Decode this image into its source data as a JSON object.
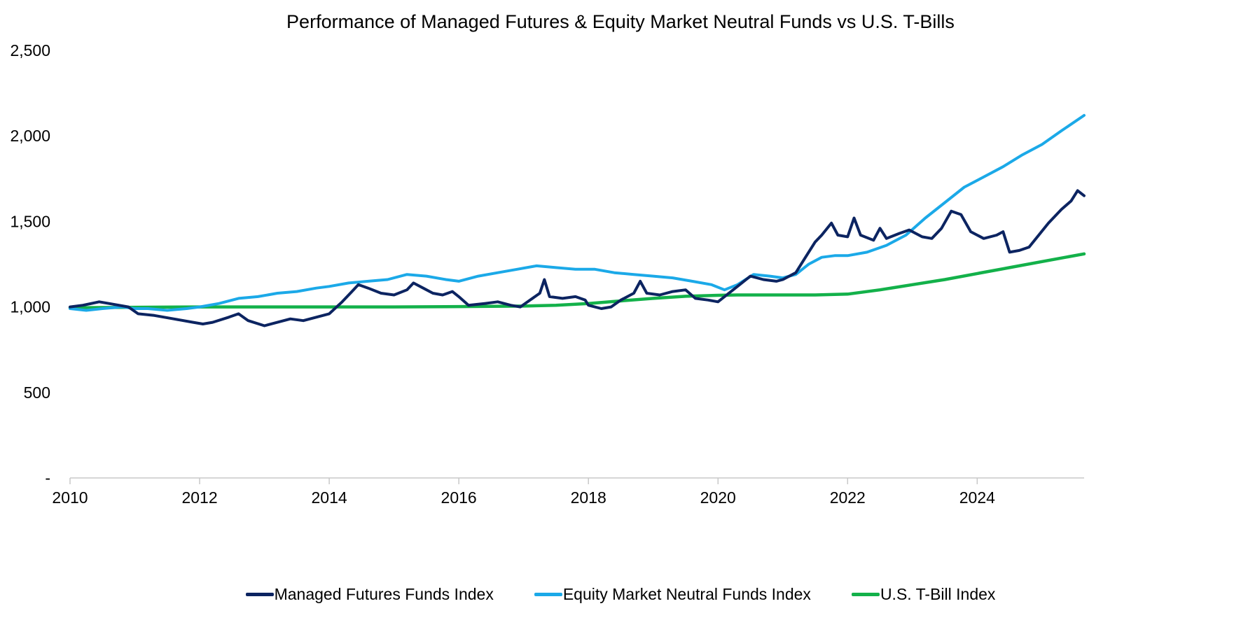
{
  "chart_data": {
    "type": "line",
    "title": "Performance of Managed Futures & Equity Market Neutral Funds vs U.S. T-Bills",
    "xlabel": "",
    "ylabel": "",
    "x_ticks": [
      "2010",
      "2012",
      "2014",
      "2016",
      "2018",
      "2020",
      "2022",
      "2024"
    ],
    "y_ticks": [
      "-",
      "500",
      "1,000",
      "1,500",
      "2,000",
      "2,500"
    ],
    "ylim": [
      0,
      2500
    ],
    "xlim": [
      2010.0,
      2025.65
    ],
    "grid": false,
    "legend": "bottom",
    "series": [
      {
        "name": "Managed Futures Funds Index",
        "color": "#0c2461",
        "points": [
          [
            2010.0,
            1000
          ],
          [
            2010.2,
            1010
          ],
          [
            2010.45,
            1030
          ],
          [
            2010.6,
            1020
          ],
          [
            2010.9,
            1000
          ],
          [
            2011.05,
            960
          ],
          [
            2011.3,
            950
          ],
          [
            2011.6,
            930
          ],
          [
            2011.9,
            910
          ],
          [
            2012.05,
            900
          ],
          [
            2012.2,
            910
          ],
          [
            2012.45,
            940
          ],
          [
            2012.6,
            960
          ],
          [
            2012.75,
            920
          ],
          [
            2013.0,
            890
          ],
          [
            2013.2,
            910
          ],
          [
            2013.4,
            930
          ],
          [
            2013.6,
            920
          ],
          [
            2013.8,
            940
          ],
          [
            2014.0,
            960
          ],
          [
            2014.2,
            1030
          ],
          [
            2014.35,
            1090
          ],
          [
            2014.45,
            1130
          ],
          [
            2014.6,
            1110
          ],
          [
            2014.8,
            1080
          ],
          [
            2015.0,
            1070
          ],
          [
            2015.2,
            1100
          ],
          [
            2015.3,
            1140
          ],
          [
            2015.45,
            1110
          ],
          [
            2015.6,
            1080
          ],
          [
            2015.75,
            1070
          ],
          [
            2015.9,
            1090
          ],
          [
            2016.0,
            1060
          ],
          [
            2016.15,
            1010
          ],
          [
            2016.4,
            1020
          ],
          [
            2016.6,
            1030
          ],
          [
            2016.8,
            1010
          ],
          [
            2016.95,
            1000
          ],
          [
            2017.1,
            1040
          ],
          [
            2017.25,
            1080
          ],
          [
            2017.32,
            1160
          ],
          [
            2017.4,
            1060
          ],
          [
            2017.6,
            1050
          ],
          [
            2017.8,
            1060
          ],
          [
            2017.95,
            1040
          ],
          [
            2018.0,
            1010
          ],
          [
            2018.2,
            990
          ],
          [
            2018.35,
            1000
          ],
          [
            2018.5,
            1040
          ],
          [
            2018.7,
            1080
          ],
          [
            2018.8,
            1150
          ],
          [
            2018.9,
            1080
          ],
          [
            2019.1,
            1070
          ],
          [
            2019.3,
            1090
          ],
          [
            2019.5,
            1100
          ],
          [
            2019.65,
            1050
          ],
          [
            2019.85,
            1040
          ],
          [
            2020.0,
            1030
          ],
          [
            2020.1,
            1060
          ],
          [
            2020.3,
            1120
          ],
          [
            2020.5,
            1180
          ],
          [
            2020.7,
            1160
          ],
          [
            2020.9,
            1150
          ],
          [
            2021.0,
            1160
          ],
          [
            2021.2,
            1200
          ],
          [
            2021.35,
            1290
          ],
          [
            2021.5,
            1380
          ],
          [
            2021.6,
            1420
          ],
          [
            2021.75,
            1490
          ],
          [
            2021.85,
            1420
          ],
          [
            2022.0,
            1410
          ],
          [
            2022.1,
            1520
          ],
          [
            2022.2,
            1420
          ],
          [
            2022.4,
            1390
          ],
          [
            2022.5,
            1460
          ],
          [
            2022.6,
            1400
          ],
          [
            2022.8,
            1430
          ],
          [
            2022.95,
            1450
          ],
          [
            2023.15,
            1410
          ],
          [
            2023.3,
            1400
          ],
          [
            2023.45,
            1460
          ],
          [
            2023.6,
            1560
          ],
          [
            2023.75,
            1540
          ],
          [
            2023.9,
            1440
          ],
          [
            2024.1,
            1400
          ],
          [
            2024.3,
            1420
          ],
          [
            2024.4,
            1440
          ],
          [
            2024.5,
            1320
          ],
          [
            2024.65,
            1330
          ],
          [
            2024.8,
            1350
          ],
          [
            2024.95,
            1420
          ],
          [
            2025.1,
            1490
          ],
          [
            2025.3,
            1570
          ],
          [
            2025.45,
            1620
          ],
          [
            2025.55,
            1680
          ],
          [
            2025.65,
            1650
          ]
        ]
      },
      {
        "name": "Equity Market Neutral Funds Index",
        "color": "#1ba9e8",
        "points": [
          [
            2010.0,
            990
          ],
          [
            2010.25,
            980
          ],
          [
            2010.5,
            990
          ],
          [
            2010.8,
            1000
          ],
          [
            2011.0,
            990
          ],
          [
            2011.2,
            990
          ],
          [
            2011.5,
            980
          ],
          [
            2011.8,
            990
          ],
          [
            2012.0,
            1000
          ],
          [
            2012.3,
            1020
          ],
          [
            2012.6,
            1050
          ],
          [
            2012.9,
            1060
          ],
          [
            2013.2,
            1080
          ],
          [
            2013.5,
            1090
          ],
          [
            2013.8,
            1110
          ],
          [
            2014.0,
            1120
          ],
          [
            2014.3,
            1140
          ],
          [
            2014.6,
            1150
          ],
          [
            2014.9,
            1160
          ],
          [
            2015.2,
            1190
          ],
          [
            2015.5,
            1180
          ],
          [
            2015.8,
            1160
          ],
          [
            2016.0,
            1150
          ],
          [
            2016.3,
            1180
          ],
          [
            2016.6,
            1200
          ],
          [
            2016.9,
            1220
          ],
          [
            2017.2,
            1240
          ],
          [
            2017.5,
            1230
          ],
          [
            2017.8,
            1220
          ],
          [
            2018.1,
            1220
          ],
          [
            2018.4,
            1200
          ],
          [
            2018.7,
            1190
          ],
          [
            2019.0,
            1180
          ],
          [
            2019.3,
            1170
          ],
          [
            2019.6,
            1150
          ],
          [
            2019.9,
            1130
          ],
          [
            2020.1,
            1100
          ],
          [
            2020.3,
            1130
          ],
          [
            2020.55,
            1190
          ],
          [
            2020.8,
            1180
          ],
          [
            2021.0,
            1170
          ],
          [
            2021.2,
            1190
          ],
          [
            2021.4,
            1250
          ],
          [
            2021.6,
            1290
          ],
          [
            2021.8,
            1300
          ],
          [
            2022.0,
            1300
          ],
          [
            2022.3,
            1320
          ],
          [
            2022.6,
            1360
          ],
          [
            2022.9,
            1420
          ],
          [
            2023.2,
            1520
          ],
          [
            2023.5,
            1610
          ],
          [
            2023.8,
            1700
          ],
          [
            2024.1,
            1760
          ],
          [
            2024.4,
            1820
          ],
          [
            2024.7,
            1890
          ],
          [
            2025.0,
            1950
          ],
          [
            2025.3,
            2030
          ],
          [
            2025.65,
            2120
          ]
        ]
      },
      {
        "name": "U.S. T-Bill Index",
        "color": "#13b14a",
        "points": [
          [
            2010.0,
            995
          ],
          [
            2011.0,
            998
          ],
          [
            2012.0,
            1000
          ],
          [
            2013.0,
            1000
          ],
          [
            2014.0,
            1000
          ],
          [
            2015.0,
            1000
          ],
          [
            2016.0,
            1002
          ],
          [
            2017.0,
            1005
          ],
          [
            2017.5,
            1010
          ],
          [
            2018.0,
            1020
          ],
          [
            2018.5,
            1035
          ],
          [
            2019.0,
            1050
          ],
          [
            2019.5,
            1062
          ],
          [
            2020.0,
            1068
          ],
          [
            2020.3,
            1070
          ],
          [
            2020.6,
            1070
          ],
          [
            2021.0,
            1070
          ],
          [
            2021.5,
            1070
          ],
          [
            2022.0,
            1075
          ],
          [
            2022.5,
            1100
          ],
          [
            2023.0,
            1130
          ],
          [
            2023.5,
            1160
          ],
          [
            2024.0,
            1195
          ],
          [
            2024.5,
            1230
          ],
          [
            2025.0,
            1265
          ],
          [
            2025.65,
            1310
          ]
        ]
      }
    ]
  }
}
